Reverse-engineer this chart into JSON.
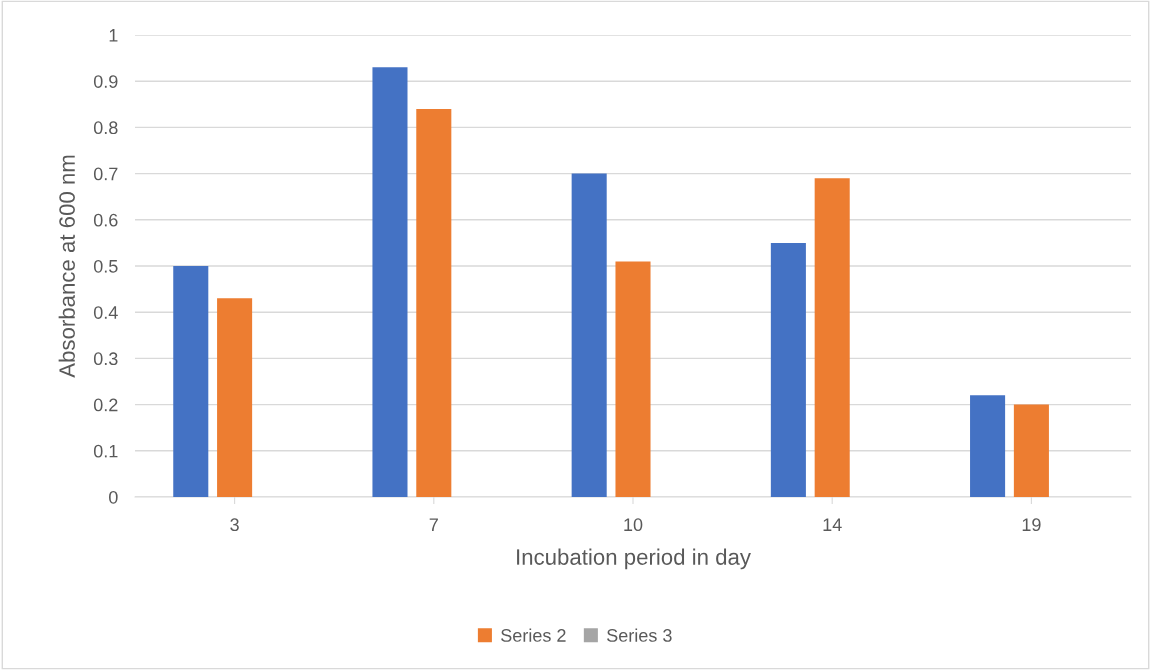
{
  "chart_data": {
    "type": "bar",
    "xlabel": "Incubation period in day",
    "ylabel": "Absorbance at 600 nm",
    "categories": [
      "3",
      "7",
      "10",
      "14",
      "19"
    ],
    "series": [
      {
        "color": "#4472c4",
        "values": [
          0.5,
          0.93,
          0.7,
          0.55,
          0.22
        ]
      },
      {
        "name": "Series 2",
        "color": "#ed7d31",
        "values": [
          0.43,
          0.84,
          0.51,
          0.69,
          0.2
        ]
      },
      {
        "name": "Series 3",
        "color": "#a5a5a5",
        "values": [
          null,
          null,
          null,
          null,
          null
        ]
      }
    ],
    "ylim": [
      0,
      1
    ],
    "yticks": [
      0,
      0.1,
      0.2,
      0.3,
      0.4,
      0.5,
      0.6,
      0.7,
      0.8,
      0.9,
      1
    ],
    "grid": "y",
    "legend": "bottom"
  }
}
